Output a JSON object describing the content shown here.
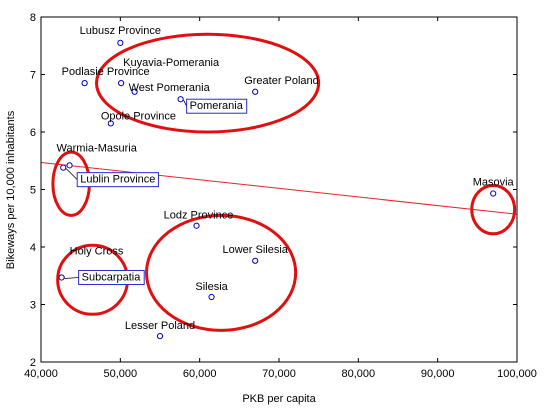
{
  "chart_data": {
    "type": "scatter",
    "title": "",
    "xlabel": "PKB per capita",
    "ylabel": "Bikeways per 10,000 inhabitants",
    "xlim": [
      40000,
      100000
    ],
    "ylim": [
      2,
      8
    ],
    "x_ticks": [
      40000,
      50000,
      60000,
      70000,
      80000,
      90000,
      100000
    ],
    "x_tick_labels": [
      "40,000",
      "50,000",
      "60,000",
      "70,000",
      "80,000",
      "90,000",
      "100,000"
    ],
    "y_ticks": [
      2,
      3,
      4,
      5,
      6,
      7,
      8
    ],
    "y_tick_labels": [
      "2",
      "3",
      "4",
      "5",
      "6",
      "7",
      "8"
    ],
    "grid": false,
    "legend": "none",
    "colors": {
      "points": "#0000cc",
      "fit_line": "#e8232a",
      "cluster_ellipse": "#e01010",
      "label_box": "#2a2ad0"
    },
    "points": [
      {
        "name": "Lubusz Province",
        "x": 50000,
        "y": 7.55
      },
      {
        "name": "Kuyavia-Pomerania",
        "x": 50100,
        "y": 6.85
      },
      {
        "name": "Podlasie Province",
        "x": 45500,
        "y": 6.85
      },
      {
        "name": "West Pomerania",
        "x": 51800,
        "y": 6.7
      },
      {
        "name": "Greater Poland",
        "x": 67000,
        "y": 6.7
      },
      {
        "name": "Pomerania",
        "x": 57600,
        "y": 6.57,
        "boxed": true
      },
      {
        "name": "Opole Province",
        "x": 48800,
        "y": 6.15
      },
      {
        "name": "Warmia-Masuria",
        "x": 43600,
        "y": 5.42
      },
      {
        "name": "Lublin Province",
        "x": 42800,
        "y": 5.38,
        "boxed": true
      },
      {
        "name": "Masovia",
        "x": 97000,
        "y": 4.93
      },
      {
        "name": "Lodz Province",
        "x": 59600,
        "y": 4.37
      },
      {
        "name": "Lower Silesia",
        "x": 67000,
        "y": 3.76
      },
      {
        "name": "Holy Cross",
        "x": 42600,
        "y": 3.47
      },
      {
        "name": "Subcarpatia",
        "x": 42600,
        "y": 3.47,
        "boxed": true
      },
      {
        "name": "Silesia",
        "x": 61500,
        "y": 3.13
      },
      {
        "name": "Lesser Poland",
        "x": 55000,
        "y": 2.45
      }
    ],
    "fit_line": {
      "x": [
        40000,
        100000
      ],
      "y": [
        5.47,
        4.57
      ]
    },
    "cluster_ellipses": [
      {
        "name": "north-west-group",
        "cx": 61000,
        "cy": 6.85,
        "rx": 14000,
        "ry": 0.85
      },
      {
        "name": "lublin-group",
        "cx": 43800,
        "cy": 5.1,
        "rx": 2300,
        "ry": 0.55
      },
      {
        "name": "masovia-group",
        "cx": 97000,
        "cy": 4.65,
        "rx": 2700,
        "ry": 0.42
      },
      {
        "name": "subcarpatia-group",
        "cx": 46500,
        "cy": 3.43,
        "rx": 4400,
        "ry": 0.6
      },
      {
        "name": "central-south-group",
        "cx": 62700,
        "cy": 3.55,
        "rx": 9400,
        "ry": 1.0
      }
    ]
  }
}
